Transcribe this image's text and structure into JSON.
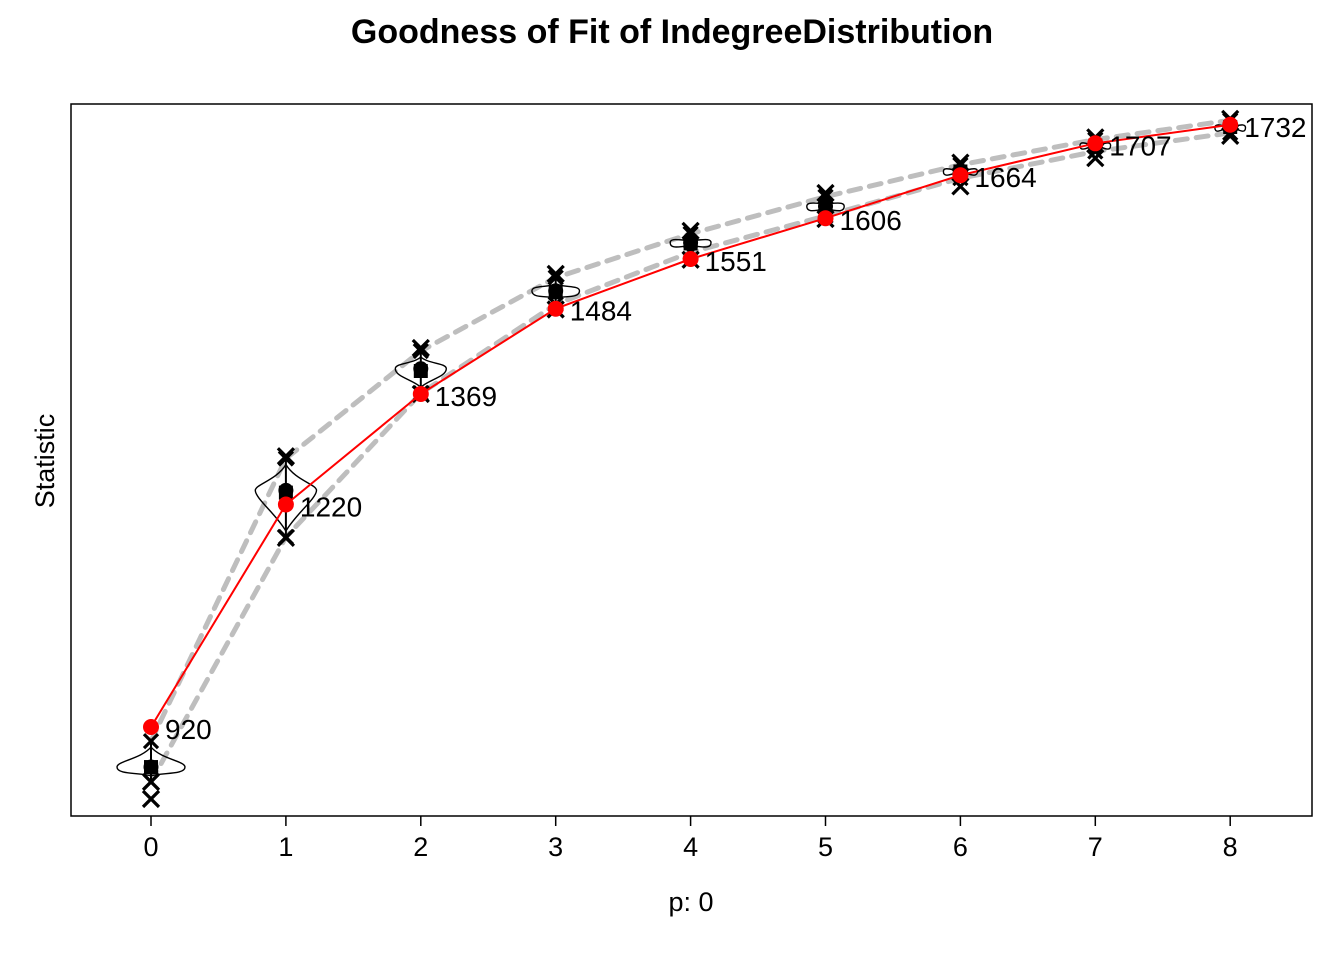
{
  "chart_data": {
    "type": "line",
    "title": "Goodness of Fit of IndegreeDistribution",
    "xlabel": "p: 0",
    "ylabel": "Statistic",
    "x": [
      0,
      1,
      2,
      3,
      4,
      5,
      6,
      7,
      8
    ],
    "xticks": [
      "0",
      "1",
      "2",
      "3",
      "4",
      "5",
      "6",
      "7",
      "8"
    ],
    "ylim": [
      800,
      1760
    ],
    "yticks_shown": false,
    "grid": false,
    "legend": "none",
    "series": [
      {
        "role": "observed",
        "color": "#ff0000",
        "values": [
          920,
          1220,
          1369,
          1484,
          1551,
          1606,
          1664,
          1707,
          1732
        ],
        "labels": [
          "920",
          "1220",
          "1369",
          "1484",
          "1551",
          "1606",
          "1664",
          "1707",
          "1732"
        ]
      }
    ],
    "simulated": {
      "color": "#000000",
      "band_color": "#bebebe",
      "mean": [
        866,
        1239,
        1403,
        1508,
        1573,
        1622,
        1669,
        1704,
        1728
      ],
      "median": [
        866,
        1236,
        1400,
        1506,
        1572,
        1621,
        1669,
        1704,
        1729
      ],
      "band_low": [
        846,
        1176,
        1370,
        1490,
        1560,
        1609,
        1660,
        1696,
        1721
      ],
      "band_high": [
        901,
        1282,
        1427,
        1526,
        1585,
        1635,
        1678,
        1712,
        1738
      ],
      "min": [
        823,
        1175,
        1369,
        1483,
        1550,
        1605,
        1649,
        1687,
        1717
      ],
      "max": [
        846,
        1285,
        1431,
        1531,
        1589,
        1640,
        1681,
        1715,
        1740
      ],
      "violin_spread": [
        1.0,
        0.9,
        0.75,
        0.7,
        0.6,
        0.55,
        0.5,
        0.45,
        0.45
      ]
    }
  }
}
